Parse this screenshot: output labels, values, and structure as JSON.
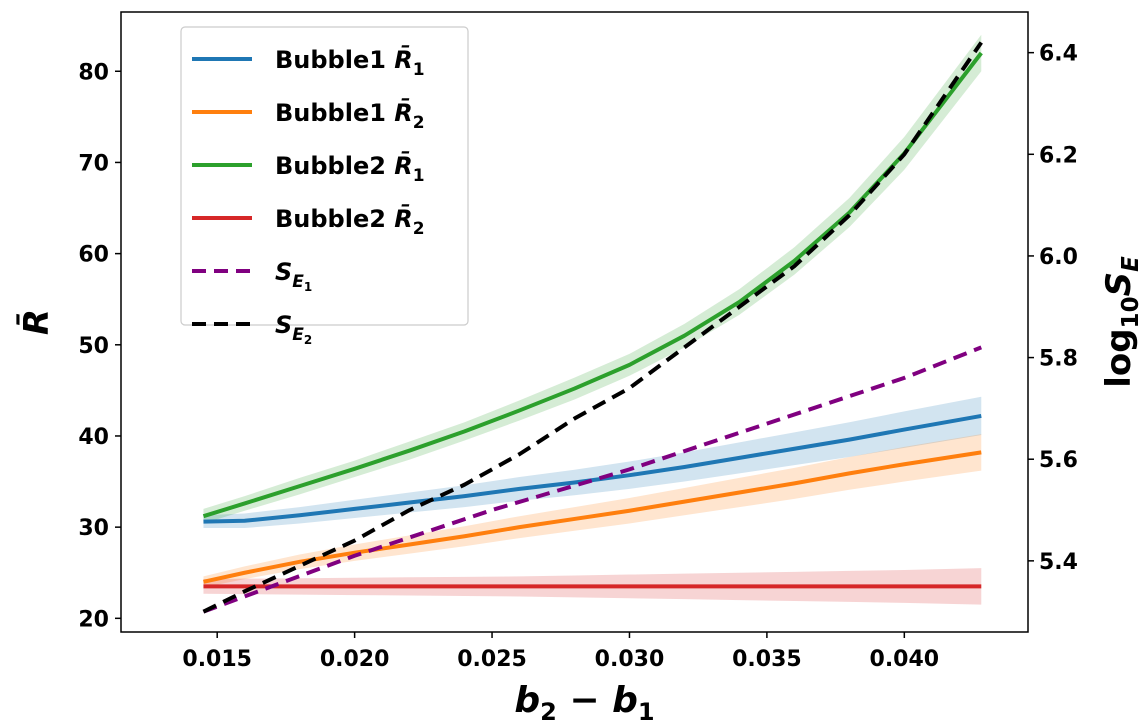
{
  "chart_data": {
    "type": "line",
    "xlabel_parts": [
      "b",
      "2",
      " − ",
      "b",
      "1"
    ],
    "ylabel": "R̄",
    "y2label_parts": [
      "log",
      "10",
      "S",
      "E"
    ],
    "xlim": [
      0.0115,
      0.0445
    ],
    "ylim": [
      18.5,
      86.5
    ],
    "y2lim": [
      5.26,
      6.48
    ],
    "xticks": [
      0.015,
      0.02,
      0.025,
      0.03,
      0.035,
      0.04
    ],
    "xtick_labels": [
      "0.015",
      "0.020",
      "0.025",
      "0.030",
      "0.035",
      "0.040"
    ],
    "yticks": [
      20,
      30,
      40,
      50,
      60,
      70,
      80
    ],
    "ytick_labels": [
      "20",
      "30",
      "40",
      "50",
      "60",
      "70",
      "80"
    ],
    "y2ticks": [
      5.4,
      5.6,
      5.8,
      6.0,
      6.2,
      6.4
    ],
    "y2tick_labels": [
      "5.4",
      "5.6",
      "5.8",
      "6.0",
      "6.2",
      "6.4"
    ],
    "legend_position": "upper-left",
    "series": [
      {
        "name": "Bubble1 R̄1",
        "label_parts": [
          "Bubble1 ",
          "R̄",
          "1"
        ],
        "color": "#1f77b4",
        "dash": "solid",
        "axis": "left",
        "x": [
          0.0145,
          0.016,
          0.018,
          0.02,
          0.022,
          0.024,
          0.026,
          0.028,
          0.03,
          0.032,
          0.034,
          0.036,
          0.038,
          0.04,
          0.0428
        ],
        "y": [
          30.6,
          30.7,
          31.3,
          32.0,
          32.7,
          33.4,
          34.2,
          34.9,
          35.7,
          36.6,
          37.6,
          38.6,
          39.6,
          40.7,
          42.2
        ],
        "band": [
          0.7,
          0.8,
          0.9,
          1.0,
          1.1,
          1.2,
          1.3,
          1.4,
          1.5,
          1.6,
          1.7,
          1.8,
          1.9,
          2.0,
          2.1
        ]
      },
      {
        "name": "Bubble1 R̄2",
        "label_parts": [
          "Bubble1 ",
          "R̄",
          "2"
        ],
        "color": "#ff7f0e",
        "dash": "solid",
        "axis": "left",
        "x": [
          0.0145,
          0.016,
          0.018,
          0.02,
          0.022,
          0.024,
          0.026,
          0.028,
          0.03,
          0.032,
          0.034,
          0.036,
          0.038,
          0.04,
          0.0428
        ],
        "y": [
          24.0,
          25.0,
          26.2,
          27.2,
          28.1,
          29.0,
          30.0,
          30.9,
          31.8,
          32.8,
          33.8,
          34.8,
          35.9,
          36.9,
          38.2
        ],
        "band": [
          0.6,
          0.7,
          0.8,
          0.9,
          1.0,
          1.1,
          1.2,
          1.3,
          1.4,
          1.5,
          1.6,
          1.7,
          1.8,
          1.9,
          2.0
        ]
      },
      {
        "name": "Bubble2 R̄1",
        "label_parts": [
          "Bubble2 ",
          "R̄",
          "1"
        ],
        "color": "#2ca02c",
        "dash": "solid",
        "axis": "left",
        "x": [
          0.0145,
          0.016,
          0.018,
          0.02,
          0.022,
          0.024,
          0.026,
          0.028,
          0.03,
          0.032,
          0.034,
          0.036,
          0.038,
          0.04,
          0.0428
        ],
        "y": [
          31.2,
          32.6,
          34.5,
          36.4,
          38.4,
          40.5,
          42.8,
          45.2,
          47.8,
          51.0,
          54.7,
          59.2,
          64.5,
          71.0,
          82.0
        ],
        "band": [
          0.8,
          0.8,
          0.9,
          0.9,
          1.0,
          1.0,
          1.1,
          1.2,
          1.2,
          1.3,
          1.4,
          1.5,
          1.6,
          1.8,
          2.0
        ]
      },
      {
        "name": "Bubble2 R̄2",
        "label_parts": [
          "Bubble2 ",
          "R̄",
          "2"
        ],
        "color": "#d62728",
        "dash": "solid",
        "axis": "left",
        "x": [
          0.0145,
          0.016,
          0.018,
          0.02,
          0.022,
          0.024,
          0.026,
          0.028,
          0.03,
          0.032,
          0.034,
          0.036,
          0.038,
          0.04,
          0.0428
        ],
        "y": [
          23.5,
          23.5,
          23.5,
          23.5,
          23.5,
          23.5,
          23.5,
          23.5,
          23.5,
          23.5,
          23.5,
          23.5,
          23.5,
          23.5,
          23.5
        ],
        "band": [
          0.8,
          0.85,
          0.9,
          0.95,
          1.0,
          1.05,
          1.1,
          1.2,
          1.3,
          1.4,
          1.5,
          1.6,
          1.7,
          1.8,
          2.0
        ]
      },
      {
        "name": "SE1",
        "label_parts": [
          "S",
          "E",
          "1"
        ],
        "color": "#800080",
        "dash": "dashed",
        "axis": "right",
        "x": [
          0.0145,
          0.02,
          0.025,
          0.03,
          0.035,
          0.04,
          0.0428
        ],
        "y": [
          5.3,
          5.41,
          5.5,
          5.58,
          5.67,
          5.76,
          5.82
        ],
        "band": null
      },
      {
        "name": "SE2",
        "label_parts": [
          "S",
          "E",
          "2"
        ],
        "color": "#000000",
        "dash": "dashed",
        "axis": "right",
        "x": [
          0.0145,
          0.016,
          0.018,
          0.02,
          0.022,
          0.024,
          0.026,
          0.028,
          0.03,
          0.032,
          0.034,
          0.036,
          0.038,
          0.04,
          0.0428
        ],
        "y": [
          5.3,
          5.34,
          5.39,
          5.44,
          5.5,
          5.55,
          5.61,
          5.68,
          5.74,
          5.82,
          5.9,
          5.98,
          6.08,
          6.2,
          6.42
        ],
        "band": null
      }
    ]
  }
}
